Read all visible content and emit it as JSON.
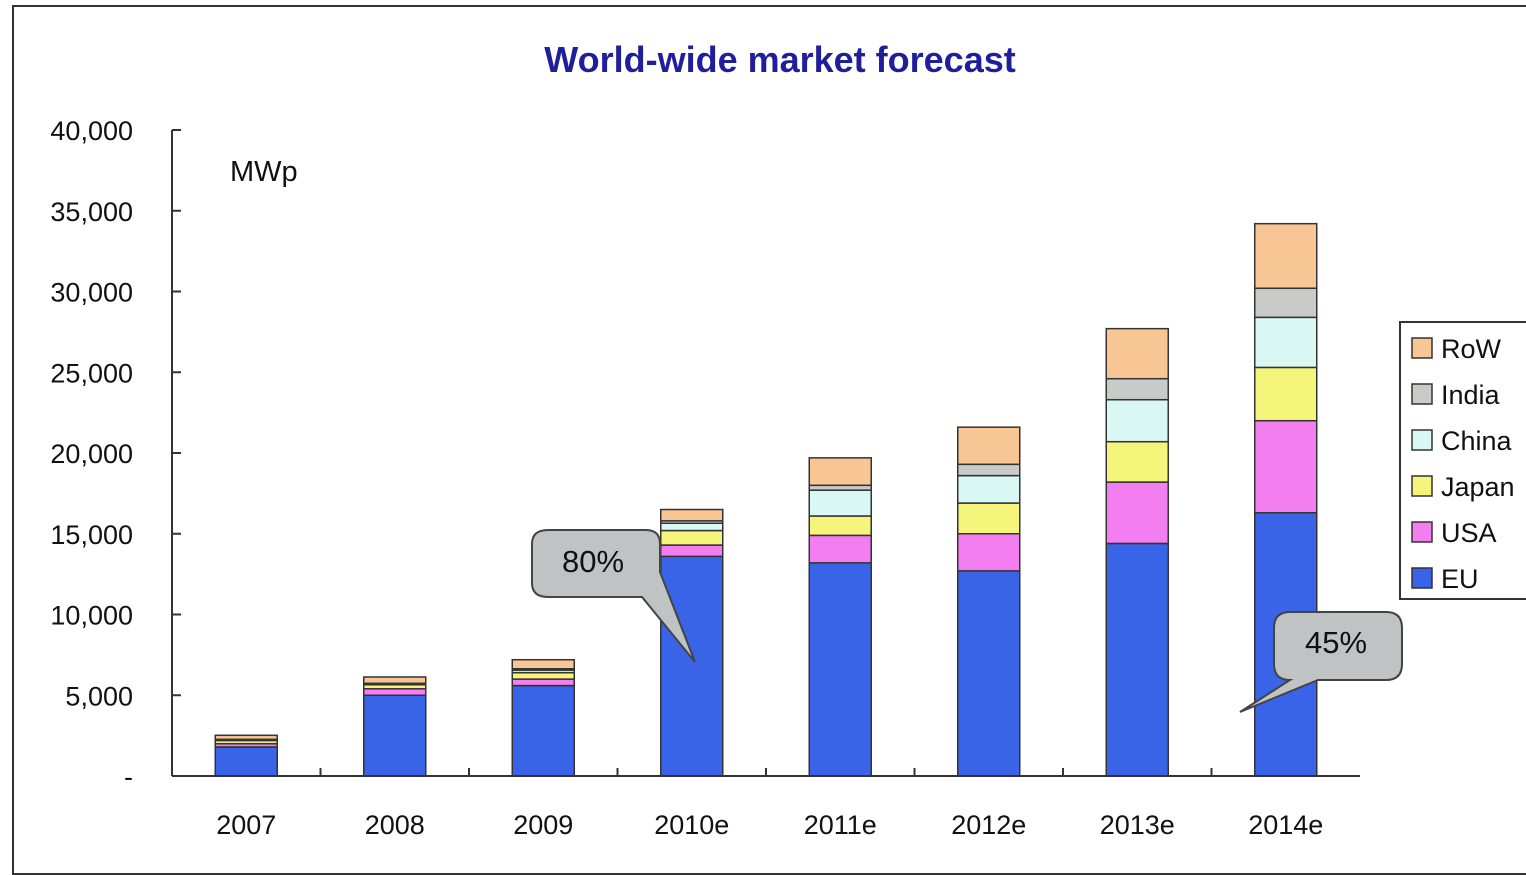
{
  "chart_data": {
    "type": "bar",
    "stacked": true,
    "title": "World-wide market forecast",
    "unit_label": "MWp",
    "categories": [
      "2007",
      "2008",
      "2009",
      "2010e",
      "2011e",
      "2012e",
      "2013e",
      "2014e"
    ],
    "ylim": [
      0,
      40000
    ],
    "y_ticks": [
      {
        "value": 0,
        "label": "-"
      },
      {
        "value": 5000,
        "label": "5,000"
      },
      {
        "value": 10000,
        "label": "10,000"
      },
      {
        "value": 15000,
        "label": "15,000"
      },
      {
        "value": 20000,
        "label": "20,000"
      },
      {
        "value": 25000,
        "label": "25,000"
      },
      {
        "value": 30000,
        "label": "30,000"
      },
      {
        "value": 35000,
        "label": "35,000"
      },
      {
        "value": 40000,
        "label": "40,000"
      }
    ],
    "grid": false,
    "legend_position": "right",
    "series": [
      {
        "name": "EU",
        "color": "#3a64e8",
        "values": [
          1800,
          5000,
          5600,
          13600,
          13200,
          12700,
          14400,
          16300
        ]
      },
      {
        "name": "USA",
        "color": "#f37ef0",
        "values": [
          200,
          400,
          400,
          700,
          1700,
          2300,
          3800,
          5700
        ]
      },
      {
        "name": "Japan",
        "color": "#f5f57c",
        "values": [
          200,
          250,
          400,
          900,
          1200,
          1900,
          2500,
          3300
        ]
      },
      {
        "name": "China",
        "color": "#d9f8f4",
        "values": [
          50,
          50,
          160,
          450,
          1600,
          1700,
          2600,
          3100
        ]
      },
      {
        "name": "India",
        "color": "#c8cbc8",
        "values": [
          20,
          40,
          80,
          150,
          300,
          700,
          1300,
          1800
        ]
      },
      {
        "name": "RoW",
        "color": "#f8c594",
        "values": [
          250,
          390,
          560,
          700,
          1700,
          2300,
          3100,
          4000
        ]
      }
    ],
    "annotations": [
      {
        "text": "80%",
        "category": "2010e"
      },
      {
        "text": "45%",
        "category": "2014e"
      }
    ]
  },
  "colors": {
    "title": "#1f1f9c",
    "axis": "#333333",
    "callout_fill": "#bfc3c3",
    "callout_stroke": "#444444"
  }
}
